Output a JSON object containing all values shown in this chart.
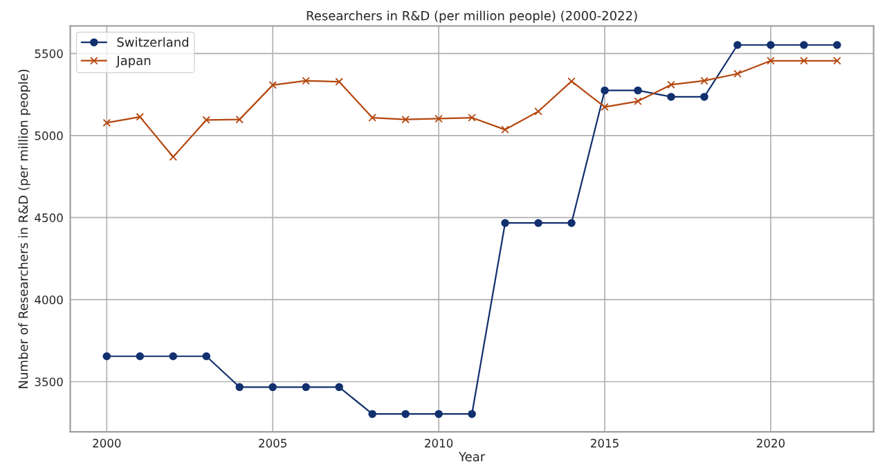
{
  "chart_data": {
    "type": "line",
    "title": "Researchers in R&D (per million people) (2000-2022)",
    "xlabel": "Year",
    "ylabel": "Number of Researchers in R&D (per million people)",
    "x": [
      2000,
      2001,
      2002,
      2003,
      2004,
      2005,
      2006,
      2007,
      2008,
      2009,
      2010,
      2011,
      2012,
      2013,
      2014,
      2015,
      2016,
      2017,
      2018,
      2019,
      2020,
      2021,
      2022
    ],
    "series": [
      {
        "name": "Switzerland",
        "color": "#12306e",
        "marker": "circle",
        "values": [
          3655,
          3655,
          3655,
          3655,
          3467,
          3467,
          3467,
          3467,
          3303,
          3303,
          3303,
          3303,
          4467,
          4467,
          4467,
          5275,
          5275,
          5236,
          5236,
          5552,
          5552,
          5552,
          5552
        ]
      },
      {
        "name": "Japan",
        "color": "#b5470f",
        "marker": "cross",
        "values": [
          5078,
          5114,
          4870,
          5095,
          5098,
          5308,
          5334,
          5328,
          5109,
          5098,
          5103,
          5109,
          5036,
          5147,
          5331,
          5174,
          5209,
          5310,
          5334,
          5377,
          5456,
          5456,
          5456
        ]
      }
    ],
    "xlim": [
      1998.9,
      2023.1
    ],
    "xticks": [
      2000,
      2005,
      2010,
      2015,
      2020
    ],
    "ylim": [
      3194,
      5668
    ],
    "yticks": [
      3500,
      4000,
      4500,
      5000,
      5500
    ],
    "grid": true,
    "legend": "top left",
    "line_style": "solid"
  }
}
